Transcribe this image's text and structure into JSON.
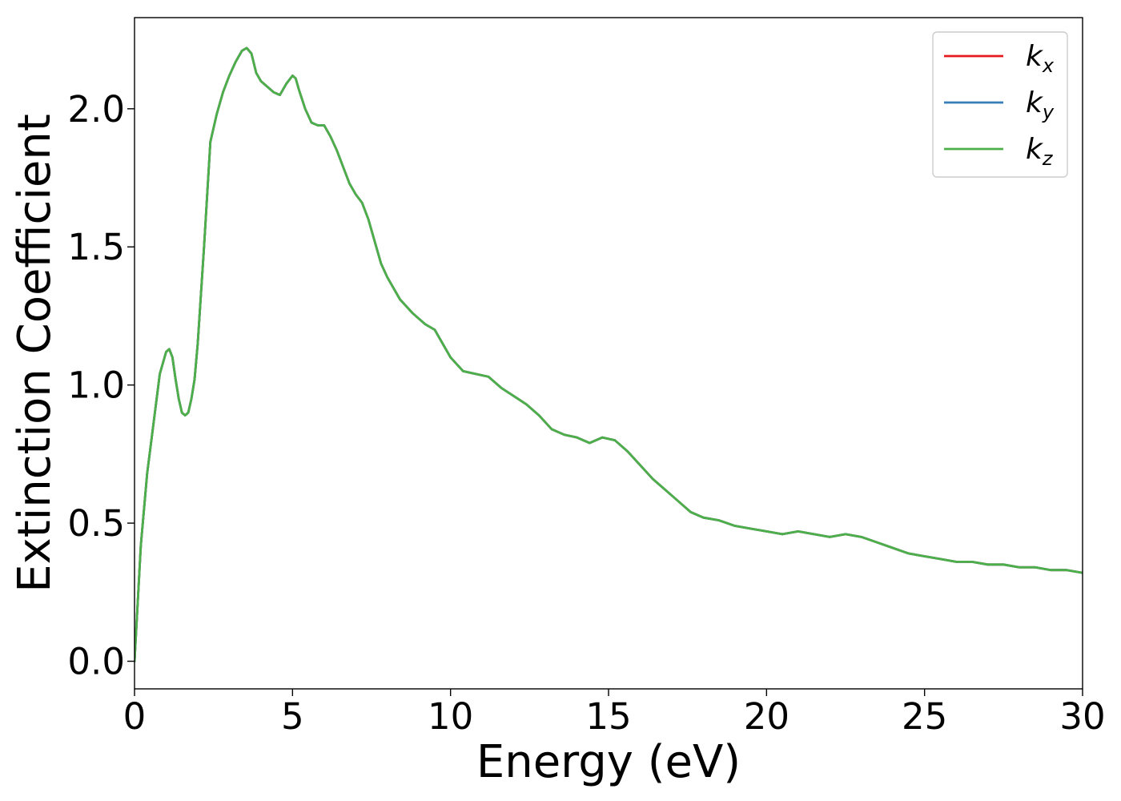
{
  "chart_data": {
    "type": "line",
    "title": "",
    "xlabel": "Energy (eV)",
    "ylabel": "Extinction Coefficient",
    "xlim": [
      0,
      30
    ],
    "ylim": [
      -0.1,
      2.33
    ],
    "xticks": [
      0,
      5,
      10,
      15,
      20,
      25,
      30
    ],
    "xtick_labels": [
      "0",
      "5",
      "10",
      "15",
      "20",
      "25",
      "30"
    ],
    "yticks": [
      0.0,
      0.5,
      1.0,
      1.5,
      2.0
    ],
    "ytick_labels": [
      "0.0",
      "0.5",
      "1.0",
      "1.5",
      "2.0"
    ],
    "grid": false,
    "legend_position": "top-right",
    "x": [
      0,
      0.2,
      0.4,
      0.6,
      0.8,
      1.0,
      1.1,
      1.2,
      1.3,
      1.4,
      1.5,
      1.6,
      1.7,
      1.8,
      1.9,
      2.0,
      2.2,
      2.4,
      2.6,
      2.8,
      3.0,
      3.2,
      3.4,
      3.55,
      3.7,
      3.85,
      4.0,
      4.2,
      4.4,
      4.6,
      4.8,
      5.0,
      5.1,
      5.2,
      5.4,
      5.6,
      5.8,
      6.0,
      6.2,
      6.4,
      6.6,
      6.8,
      7.0,
      7.2,
      7.4,
      7.6,
      7.8,
      8.0,
      8.4,
      8.8,
      9.2,
      9.5,
      9.8,
      10.0,
      10.4,
      10.8,
      11.2,
      11.6,
      12.0,
      12.4,
      12.8,
      13.2,
      13.6,
      14.0,
      14.4,
      14.8,
      15.2,
      15.6,
      16.0,
      16.4,
      16.8,
      17.2,
      17.6,
      18.0,
      18.5,
      19.0,
      19.5,
      20.0,
      20.5,
      21.0,
      21.5,
      22.0,
      22.5,
      23.0,
      23.5,
      24.0,
      24.5,
      25.0,
      25.5,
      26.0,
      26.5,
      27.0,
      27.5,
      28.0,
      28.5,
      29.0,
      29.5,
      30.0
    ],
    "series": [
      {
        "name": "k_x",
        "color": "#e41a1c",
        "values": [
          0.0,
          0.42,
          0.68,
          0.86,
          1.04,
          1.12,
          1.13,
          1.1,
          1.02,
          0.95,
          0.9,
          0.89,
          0.9,
          0.95,
          1.02,
          1.15,
          1.5,
          1.88,
          1.98,
          2.06,
          2.12,
          2.17,
          2.21,
          2.22,
          2.2,
          2.13,
          2.1,
          2.08,
          2.06,
          2.05,
          2.09,
          2.12,
          2.11,
          2.07,
          2.0,
          1.95,
          1.94,
          1.94,
          1.9,
          1.85,
          1.79,
          1.73,
          1.69,
          1.66,
          1.6,
          1.52,
          1.44,
          1.39,
          1.31,
          1.26,
          1.22,
          1.2,
          1.14,
          1.1,
          1.05,
          1.04,
          1.03,
          0.99,
          0.96,
          0.93,
          0.89,
          0.84,
          0.82,
          0.81,
          0.79,
          0.81,
          0.8,
          0.76,
          0.71,
          0.66,
          0.62,
          0.58,
          0.54,
          0.52,
          0.51,
          0.49,
          0.48,
          0.47,
          0.46,
          0.47,
          0.46,
          0.45,
          0.46,
          0.45,
          0.43,
          0.41,
          0.39,
          0.38,
          0.37,
          0.36,
          0.36,
          0.35,
          0.35,
          0.34,
          0.34,
          0.33,
          0.33,
          0.32
        ]
      },
      {
        "name": "k_y",
        "color": "#377eb8",
        "values": [
          0.0,
          0.42,
          0.68,
          0.86,
          1.04,
          1.12,
          1.13,
          1.1,
          1.02,
          0.95,
          0.9,
          0.89,
          0.9,
          0.95,
          1.02,
          1.15,
          1.5,
          1.88,
          1.98,
          2.06,
          2.12,
          2.17,
          2.21,
          2.22,
          2.2,
          2.13,
          2.1,
          2.08,
          2.06,
          2.05,
          2.09,
          2.12,
          2.11,
          2.07,
          2.0,
          1.95,
          1.94,
          1.94,
          1.9,
          1.85,
          1.79,
          1.73,
          1.69,
          1.66,
          1.6,
          1.52,
          1.44,
          1.39,
          1.31,
          1.26,
          1.22,
          1.2,
          1.14,
          1.1,
          1.05,
          1.04,
          1.03,
          0.99,
          0.96,
          0.93,
          0.89,
          0.84,
          0.82,
          0.81,
          0.79,
          0.81,
          0.8,
          0.76,
          0.71,
          0.66,
          0.62,
          0.58,
          0.54,
          0.52,
          0.51,
          0.49,
          0.48,
          0.47,
          0.46,
          0.47,
          0.46,
          0.45,
          0.46,
          0.45,
          0.43,
          0.41,
          0.39,
          0.38,
          0.37,
          0.36,
          0.36,
          0.35,
          0.35,
          0.34,
          0.34,
          0.33,
          0.33,
          0.32
        ]
      },
      {
        "name": "k_z",
        "color": "#4daf4a",
        "values": [
          0.0,
          0.42,
          0.68,
          0.86,
          1.04,
          1.12,
          1.13,
          1.1,
          1.02,
          0.95,
          0.9,
          0.89,
          0.9,
          0.95,
          1.02,
          1.15,
          1.5,
          1.88,
          1.98,
          2.06,
          2.12,
          2.17,
          2.21,
          2.22,
          2.2,
          2.13,
          2.1,
          2.08,
          2.06,
          2.05,
          2.09,
          2.12,
          2.11,
          2.07,
          2.0,
          1.95,
          1.94,
          1.94,
          1.9,
          1.85,
          1.79,
          1.73,
          1.69,
          1.66,
          1.6,
          1.52,
          1.44,
          1.39,
          1.31,
          1.26,
          1.22,
          1.2,
          1.14,
          1.1,
          1.05,
          1.04,
          1.03,
          0.99,
          0.96,
          0.93,
          0.89,
          0.84,
          0.82,
          0.81,
          0.79,
          0.81,
          0.8,
          0.76,
          0.71,
          0.66,
          0.62,
          0.58,
          0.54,
          0.52,
          0.51,
          0.49,
          0.48,
          0.47,
          0.46,
          0.47,
          0.46,
          0.45,
          0.46,
          0.45,
          0.43,
          0.41,
          0.39,
          0.38,
          0.37,
          0.36,
          0.36,
          0.35,
          0.35,
          0.34,
          0.34,
          0.33,
          0.33,
          0.32
        ]
      }
    ],
    "legend": [
      {
        "base": "k",
        "sub": "x"
      },
      {
        "base": "k",
        "sub": "y"
      },
      {
        "base": "k",
        "sub": "z"
      }
    ]
  }
}
